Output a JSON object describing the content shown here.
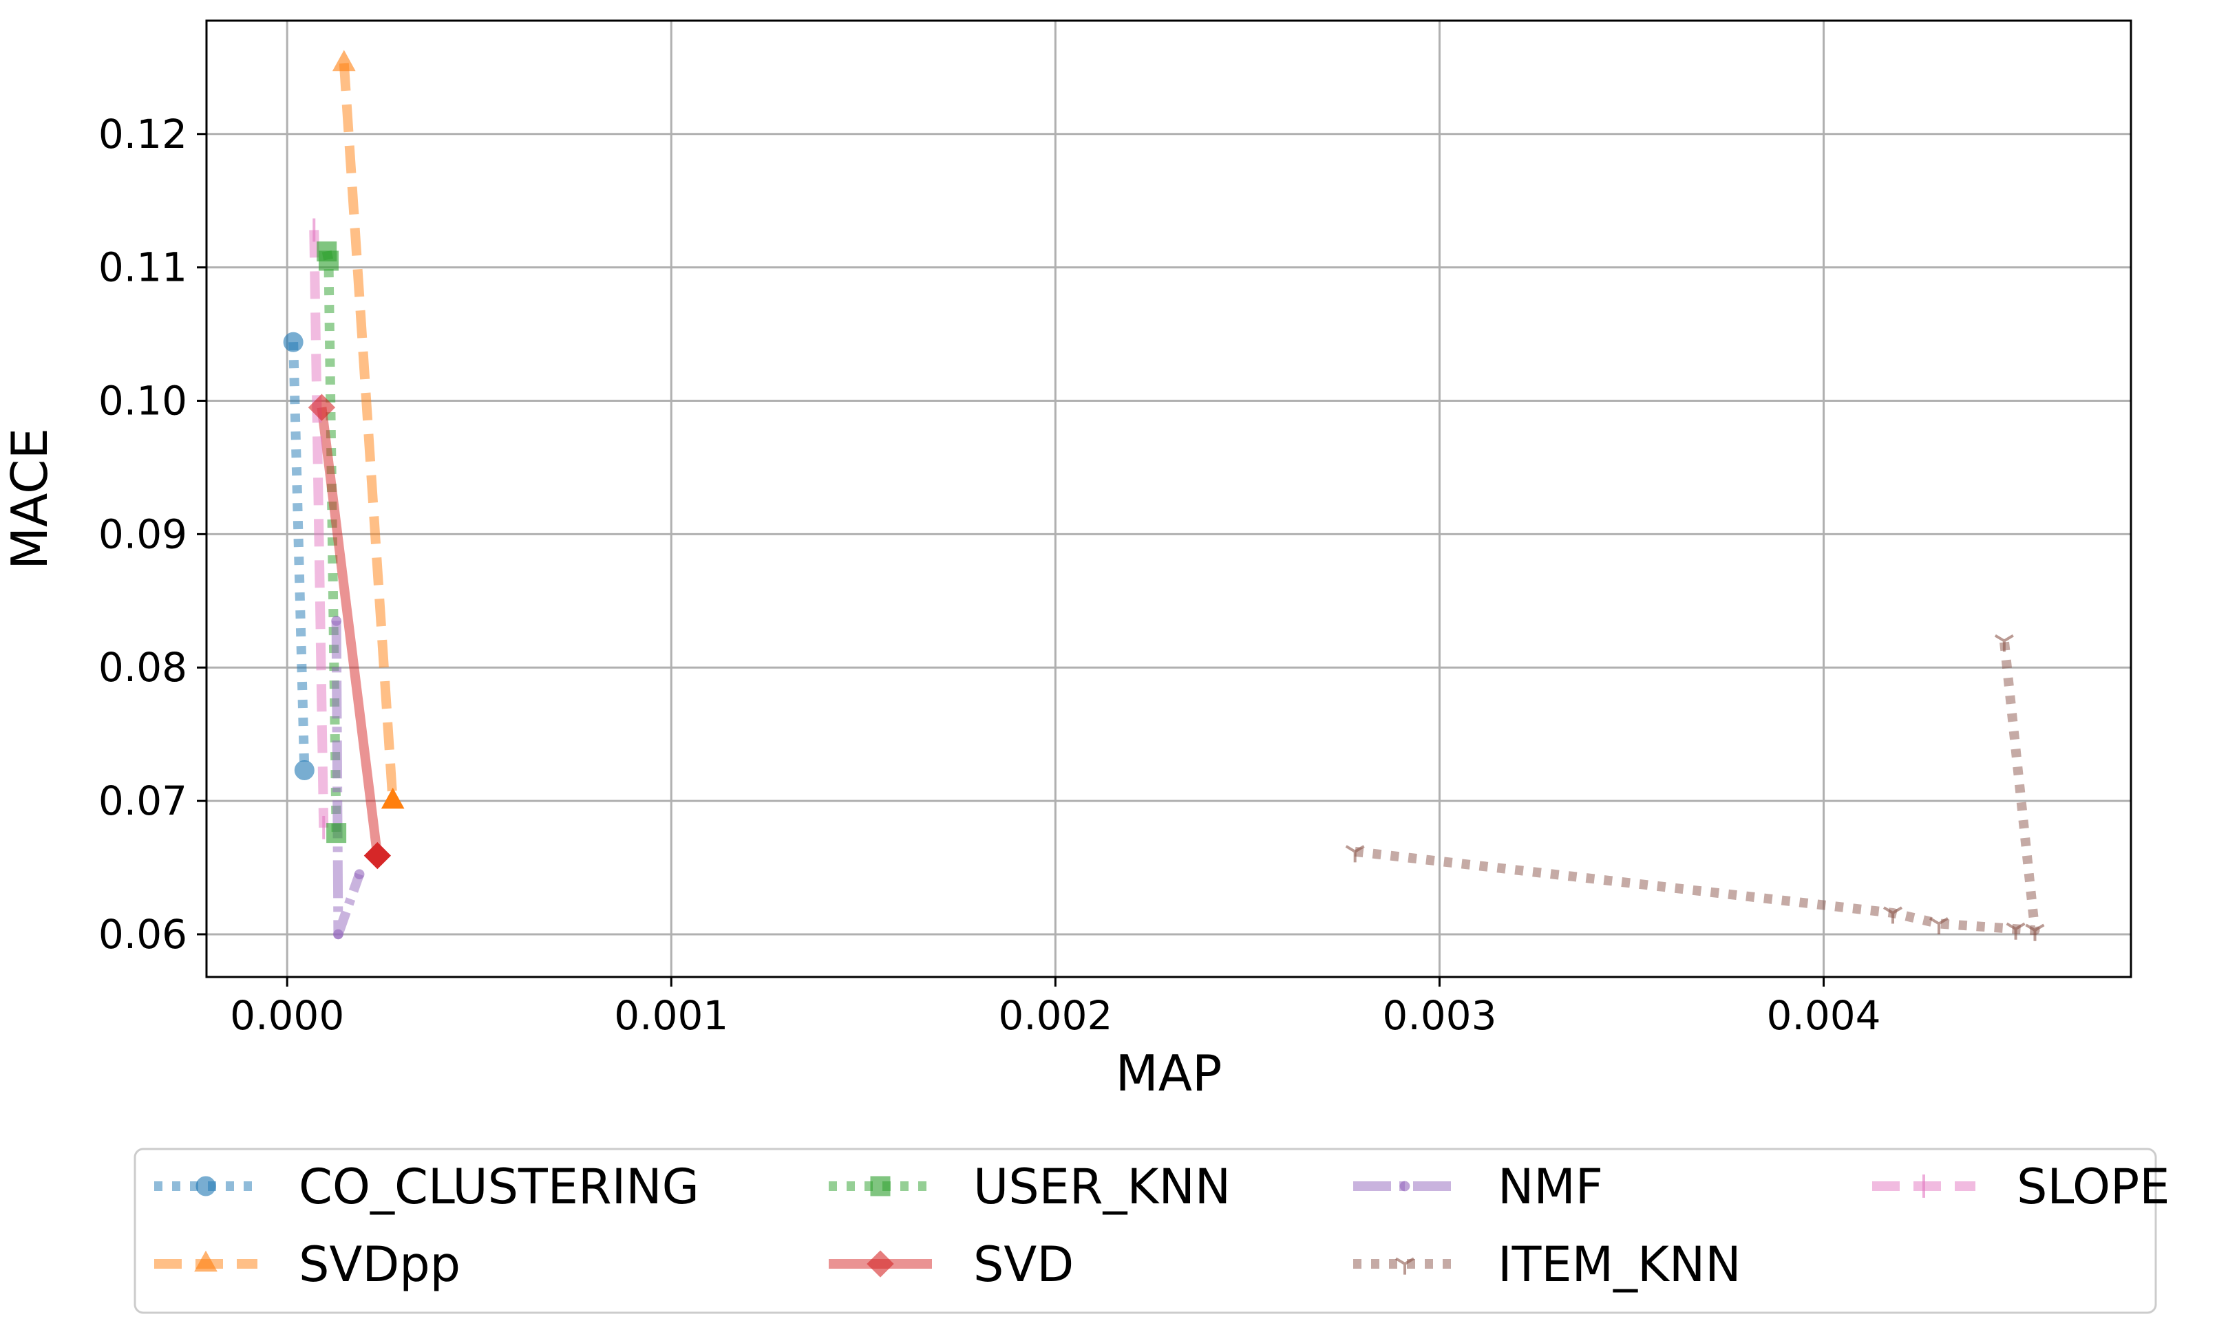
{
  "chart_data": {
    "type": "line",
    "title": "",
    "xlabel": "MAP",
    "ylabel": "MACE",
    "xlim": [
      -0.00021,
      0.0048
    ],
    "ylim": [
      0.0568,
      0.1285
    ],
    "xticks": [
      0.0,
      0.001,
      0.002,
      0.003,
      0.004
    ],
    "xtick_labels": [
      "0.000",
      "0.001",
      "0.002",
      "0.003",
      "0.004"
    ],
    "yticks": [
      0.06,
      0.07,
      0.08,
      0.09,
      0.1,
      0.11,
      0.12
    ],
    "ytick_labels": [
      "0.06",
      "0.07",
      "0.08",
      "0.09",
      "0.10",
      "0.11",
      "0.12"
    ],
    "grid": true,
    "legend_position": "bottom-outside",
    "series": [
      {
        "name": "CO_CLUSTERING",
        "color": "#1f77b4",
        "linestyle": "dotted",
        "marker": "circle",
        "points": [
          [
            1.6e-05,
            0.1044
          ],
          [
            4.5e-05,
            0.0723
          ]
        ]
      },
      {
        "name": "SVDpp",
        "color": "#ff7f0e",
        "linestyle": "dashed",
        "marker": "triangle",
        "points": [
          [
            0.000148,
            0.1253
          ],
          [
            0.000275,
            0.07
          ]
        ]
      },
      {
        "name": "USER_KNN",
        "color": "#2ca02c",
        "linestyle": "dotted",
        "marker": "square",
        "points": [
          [
            0.000103,
            0.1112
          ],
          [
            0.000108,
            0.1105
          ],
          [
            0.000128,
            0.0676
          ]
        ]
      },
      {
        "name": "SVD",
        "color": "#d62728",
        "linestyle": "solid",
        "marker": "diamond",
        "points": [
          [
            9e-05,
            0.0995
          ],
          [
            0.000235,
            0.0659
          ]
        ]
      },
      {
        "name": "NMF",
        "color": "#9467bd",
        "linestyle": "dashdot",
        "marker": "point",
        "points": [
          [
            0.000128,
            0.0835
          ],
          [
            0.000133,
            0.06
          ],
          [
            0.000188,
            0.0645
          ]
        ]
      },
      {
        "name": "ITEM_KNN",
        "color": "#8c564b",
        "linestyle": "dotted",
        "marker": "tri_down",
        "points": [
          [
            0.00278,
            0.0662
          ],
          [
            0.00418,
            0.0616
          ],
          [
            0.0043,
            0.0608
          ],
          [
            0.0045,
            0.0604
          ],
          [
            0.00455,
            0.0603
          ],
          [
            0.00447,
            0.082
          ]
        ]
      },
      {
        "name": "SLOPE",
        "color": "#e377c2",
        "linestyle": "dashed",
        "marker": "vline",
        "points": [
          [
            7e-05,
            0.1128
          ],
          [
            9.5e-05,
            0.068
          ]
        ]
      }
    ]
  }
}
